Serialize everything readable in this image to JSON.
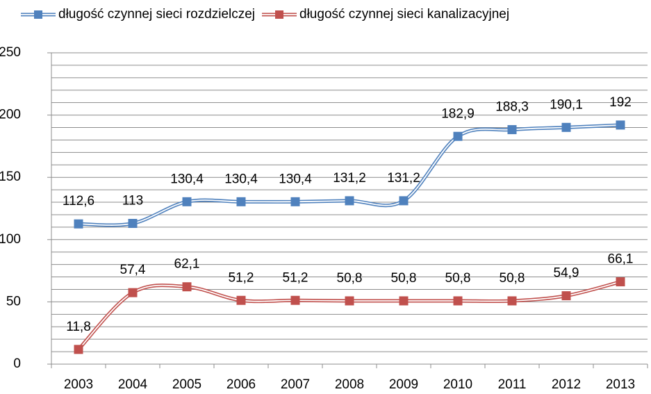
{
  "chart_data": {
    "type": "line",
    "categories": [
      "2003",
      "2004",
      "2005",
      "2006",
      "2007",
      "2008",
      "2009",
      "2010",
      "2011",
      "2012",
      "2013"
    ],
    "series": [
      {
        "name": "długość czynnej sieci rozdzielczej",
        "color": "#4f81bd",
        "values": [
          112.6,
          113,
          130.4,
          130.4,
          130.4,
          131.2,
          131.2,
          182.9,
          188.3,
          190.1,
          192
        ],
        "value_labels": [
          "112,6",
          "113",
          "130,4",
          "130,4",
          "130,4",
          "131,2",
          "131,2",
          "182,9",
          "188,3",
          "190,1",
          "192"
        ]
      },
      {
        "name": "długość czynnej sieci kanalizacyjnej",
        "color": "#c0504d",
        "values": [
          11.8,
          57.4,
          62.1,
          51.2,
          51.2,
          50.8,
          50.8,
          50.8,
          50.8,
          54.9,
          66.1
        ],
        "value_labels": [
          "11,8",
          "57,4",
          "62,1",
          "51,2",
          "51,2",
          "50,8",
          "50,8",
          "50,8",
          "50,8",
          "54,9",
          "66,1"
        ]
      }
    ],
    "ylim": [
      0,
      250
    ],
    "yticks": [
      0,
      50,
      100,
      150,
      200,
      250
    ],
    "minor_yticks": [
      10,
      20,
      30,
      40,
      60,
      70,
      80,
      90,
      110,
      120,
      130,
      140,
      160,
      170,
      180,
      190,
      210,
      220,
      230,
      240
    ],
    "grid": true,
    "smooth": true,
    "legend": "top"
  }
}
